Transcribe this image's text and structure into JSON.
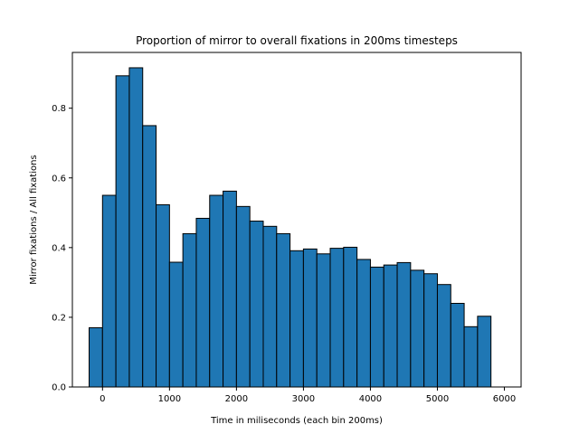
{
  "chart_data": {
    "type": "bar",
    "title": "Proportion of mirror to overall fixations in 200ms timesteps",
    "xlabel": "Time in miliseconds (each bin 200ms)",
    "ylabel": "Mirror fixations / All fixations",
    "xlim": [
      -450,
      6250
    ],
    "ylim": [
      0,
      0.96
    ],
    "bin_width": 200,
    "x_ticks": [
      0,
      1000,
      2000,
      3000,
      4000,
      5000,
      6000
    ],
    "y_ticks": [
      0.0,
      0.2,
      0.4,
      0.6,
      0.8
    ],
    "x_tick_labels": [
      "0",
      "1000",
      "2000",
      "3000",
      "4000",
      "5000",
      "6000"
    ],
    "y_tick_labels": [
      "0.0",
      "0.2",
      "0.4",
      "0.6",
      "0.8"
    ],
    "bins": [
      -100,
      100,
      300,
      500,
      700,
      900,
      1100,
      1300,
      1500,
      1700,
      1900,
      2100,
      2300,
      2500,
      2700,
      2900,
      3100,
      3300,
      3500,
      3700,
      3900,
      4100,
      4300,
      4500,
      4700,
      4900,
      5100,
      5300,
      5500,
      5700
    ],
    "values": [
      0.17,
      0.55,
      0.893,
      0.916,
      0.75,
      0.523,
      0.358,
      0.44,
      0.484,
      0.55,
      0.562,
      0.518,
      0.476,
      0.461,
      0.44,
      0.391,
      0.396,
      0.382,
      0.398,
      0.401,
      0.366,
      0.344,
      0.35,
      0.357,
      0.335,
      0.325,
      0.294,
      0.24,
      0.173,
      0.203
    ],
    "bar_color": "#1f77b4",
    "edge_color": "#000000",
    "grid": false
  }
}
